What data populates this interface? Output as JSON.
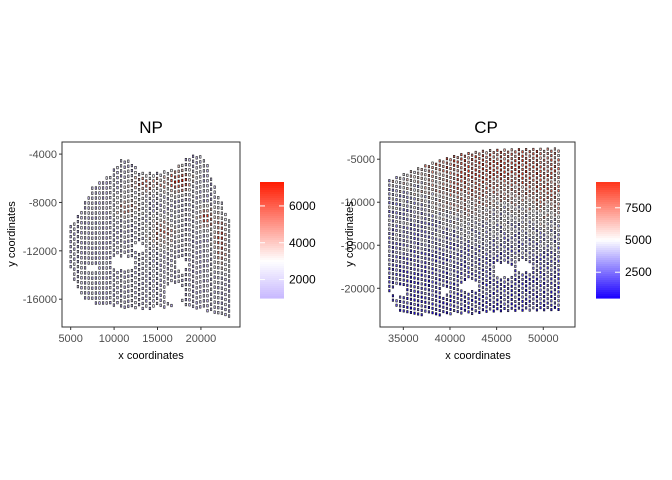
{
  "chart_data": [
    {
      "type": "scatter",
      "title": "NP",
      "xlabel": "x coordinates",
      "ylabel": "y coordinates",
      "xlim": [
        4000,
        24500
      ],
      "ylim": [
        -18300,
        -3000
      ],
      "x_ticks": [
        5000,
        10000,
        15000,
        20000
      ],
      "x_tick_labels": [
        "5000",
        "10000",
        "15000",
        "20000"
      ],
      "y_ticks": [
        -4000,
        -8000,
        -12000,
        -16000
      ],
      "y_tick_labels": [
        "-4000",
        "-8000",
        "-12000",
        "-16000"
      ],
      "grid": false,
      "legend": {
        "placement": "right",
        "ticks": [
          2000,
          4000,
          6000
        ],
        "tick_labels": [
          "2000",
          "4000",
          "6000"
        ],
        "range": [
          1000,
          7300
        ],
        "colors": {
          "low": "#c7b8ff",
          "mid": "#ffffff",
          "high": "#ff1a00",
          "midpoint": 3000
        }
      },
      "shape": {
        "xrange": [
          5000,
          23500
        ],
        "bottom": [
          [
            5000,
            -13500
          ],
          [
            5800,
            -15200
          ],
          [
            7000,
            -16200
          ],
          [
            8500,
            -16500
          ],
          [
            10000,
            -16500
          ],
          [
            12000,
            -16800
          ],
          [
            14000,
            -16800
          ],
          [
            16000,
            -16700
          ],
          [
            18000,
            -16500
          ],
          [
            20000,
            -16800
          ],
          [
            21500,
            -17200
          ],
          [
            23000,
            -17500
          ],
          [
            23500,
            -17300
          ]
        ],
        "top": [
          [
            5000,
            -10000
          ],
          [
            6000,
            -9000
          ],
          [
            7500,
            -6800
          ],
          [
            9500,
            -5800
          ],
          [
            10500,
            -4800
          ],
          [
            11000,
            -4400
          ],
          [
            12000,
            -4700
          ],
          [
            13000,
            -5600
          ],
          [
            15000,
            -5600
          ],
          [
            17000,
            -5300
          ],
          [
            18500,
            -4300
          ],
          [
            19500,
            -4100
          ],
          [
            20500,
            -4400
          ],
          [
            21500,
            -6600
          ],
          [
            22500,
            -8200
          ],
          [
            23500,
            -10000
          ]
        ],
        "holes": [
          [
            11000,
            -13000,
            1400,
            500
          ],
          [
            17000,
            -15600,
            1000,
            800
          ],
          [
            17800,
            -13200,
            500,
            700
          ],
          [
            12800,
            -11800,
            600,
            400
          ],
          [
            7500,
            -13400,
            500,
            350
          ]
        ],
        "hotspots": [
          [
            17500,
            -6200,
            1500,
            1000,
            5500
          ],
          [
            13500,
            -6500,
            2200,
            700,
            4200
          ],
          [
            22300,
            -11000,
            900,
            2200,
            4500
          ],
          [
            20500,
            -9300,
            900,
            900,
            4800
          ],
          [
            15500,
            -10500,
            1800,
            1200,
            3800
          ],
          [
            11500,
            -8500,
            1500,
            800,
            3300
          ]
        ],
        "value_base": 1500,
        "value_spread": 900
      }
    },
    {
      "type": "scatter",
      "title": "CP",
      "xlabel": "x coordinates",
      "ylabel": "y coordinates",
      "xlim": [
        32500,
        53400
      ],
      "ylim": [
        -24500,
        -3000
      ],
      "x_ticks": [
        35000,
        40000,
        45000,
        50000
      ],
      "x_tick_labels": [
        "35000",
        "40000",
        "45000",
        "50000"
      ],
      "y_ticks": [
        -5000,
        -10000,
        -15000,
        -20000
      ],
      "y_tick_labels": [
        "-5000",
        "-10000",
        "-15000",
        "-20000"
      ],
      "grid": false,
      "legend": {
        "placement": "right",
        "ticks": [
          2500,
          5000,
          7500
        ],
        "tick_labels": [
          "2500",
          "5000",
          "7500"
        ],
        "range": [
          500,
          9500
        ],
        "colors": {
          "low": "#1a00ff",
          "mid": "#ffffff",
          "high": "#ff3319",
          "midpoint": 5000
        }
      },
      "shape": {
        "xrange": [
          33500,
          51800
        ],
        "bottom": [
          [
            33500,
            -20500
          ],
          [
            34500,
            -22800
          ],
          [
            38000,
            -23200
          ],
          [
            42000,
            -23000
          ],
          [
            46000,
            -22700
          ],
          [
            50000,
            -22500
          ],
          [
            51800,
            -22500
          ]
        ],
        "top": [
          [
            33500,
            -7500
          ],
          [
            35000,
            -6800
          ],
          [
            38000,
            -5500
          ],
          [
            41000,
            -4500
          ],
          [
            44000,
            -4000
          ],
          [
            47000,
            -3900
          ],
          [
            51800,
            -3800
          ]
        ],
        "holes": [
          [
            34500,
            -20300,
            800,
            700
          ],
          [
            39500,
            -20300,
            500,
            500
          ],
          [
            42000,
            -19700,
            900,
            700
          ],
          [
            45800,
            -17800,
            1000,
            800
          ],
          [
            48000,
            -17500,
            700,
            700
          ]
        ],
        "hotspots": [
          [
            45000,
            -6000,
            7000,
            2500,
            4000
          ],
          [
            42000,
            -10000,
            3500,
            3000,
            2500
          ],
          [
            50000,
            -9500,
            3000,
            4000,
            2500
          ]
        ],
        "value_base": 5500,
        "value_gradient": -4400,
        "value_spread": 1500
      }
    }
  ]
}
